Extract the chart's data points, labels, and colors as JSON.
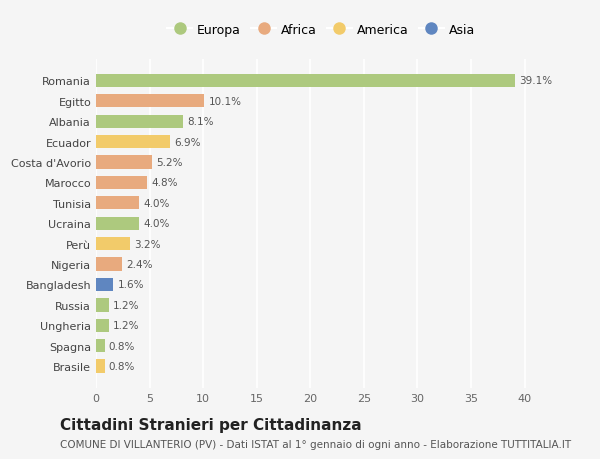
{
  "countries": [
    "Romania",
    "Egitto",
    "Albania",
    "Ecuador",
    "Costa d'Avorio",
    "Marocco",
    "Tunisia",
    "Ucraina",
    "Perù",
    "Nigeria",
    "Bangladesh",
    "Russia",
    "Ungheria",
    "Spagna",
    "Brasile"
  ],
  "values": [
    39.1,
    10.1,
    8.1,
    6.9,
    5.2,
    4.8,
    4.0,
    4.0,
    3.2,
    2.4,
    1.6,
    1.2,
    1.2,
    0.8,
    0.8
  ],
  "continents": [
    "Europa",
    "Africa",
    "Europa",
    "America",
    "Africa",
    "Africa",
    "Africa",
    "Europa",
    "America",
    "Africa",
    "Asia",
    "Europa",
    "Europa",
    "Europa",
    "America"
  ],
  "colors": {
    "Europa": "#adc97e",
    "Africa": "#e8aa7e",
    "America": "#f2cb6a",
    "Asia": "#5f86c0"
  },
  "legend_order": [
    "Europa",
    "Africa",
    "America",
    "Asia"
  ],
  "title": "Cittadini Stranieri per Cittadinanza",
  "subtitle": "COMUNE DI VILLANTERIO (PV) - Dati ISTAT al 1° gennaio di ogni anno - Elaborazione TUTTITALIA.IT",
  "xlim": [
    0,
    42
  ],
  "xticks": [
    0,
    5,
    10,
    15,
    20,
    25,
    30,
    35,
    40
  ],
  "bg_color": "#f5f5f5",
  "grid_color": "#ffffff",
  "title_fontsize": 11,
  "subtitle_fontsize": 7.5,
  "bar_height": 0.65,
  "label_fontsize": 7.5,
  "tick_fontsize": 8,
  "legend_fontsize": 9
}
